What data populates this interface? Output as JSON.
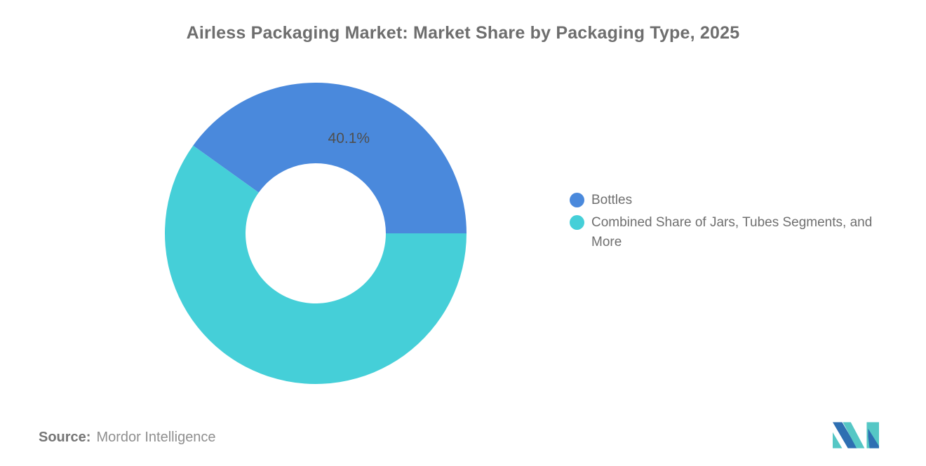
{
  "title": "Airless Packaging Market: Market Share by Packaging Type, 2025",
  "chart_data": {
    "type": "pie",
    "subtype": "donut",
    "title": "Airless Packaging Market: Market Share by Packaging Type, 2025",
    "series": [
      {
        "name": "Bottles",
        "value": 40.1,
        "color": "#4A89DC",
        "data_label": "40.1%"
      },
      {
        "name": "Combined Share of Jars, Tubes Segments, and More",
        "value": 59.9,
        "color": "#45CFD8",
        "data_label": ""
      }
    ],
    "rotation_deg": -54.36,
    "inner_radius_ratio": 0.465,
    "legend_position": "right",
    "data_label_color": "#4F4F4F"
  },
  "source": {
    "label": "Source:",
    "value": "Mordor Intelligence"
  },
  "logo": {
    "name": "mordor-intelligence-logo",
    "colors": {
      "blue": "#2E6FB2",
      "teal": "#55C7C5"
    }
  }
}
